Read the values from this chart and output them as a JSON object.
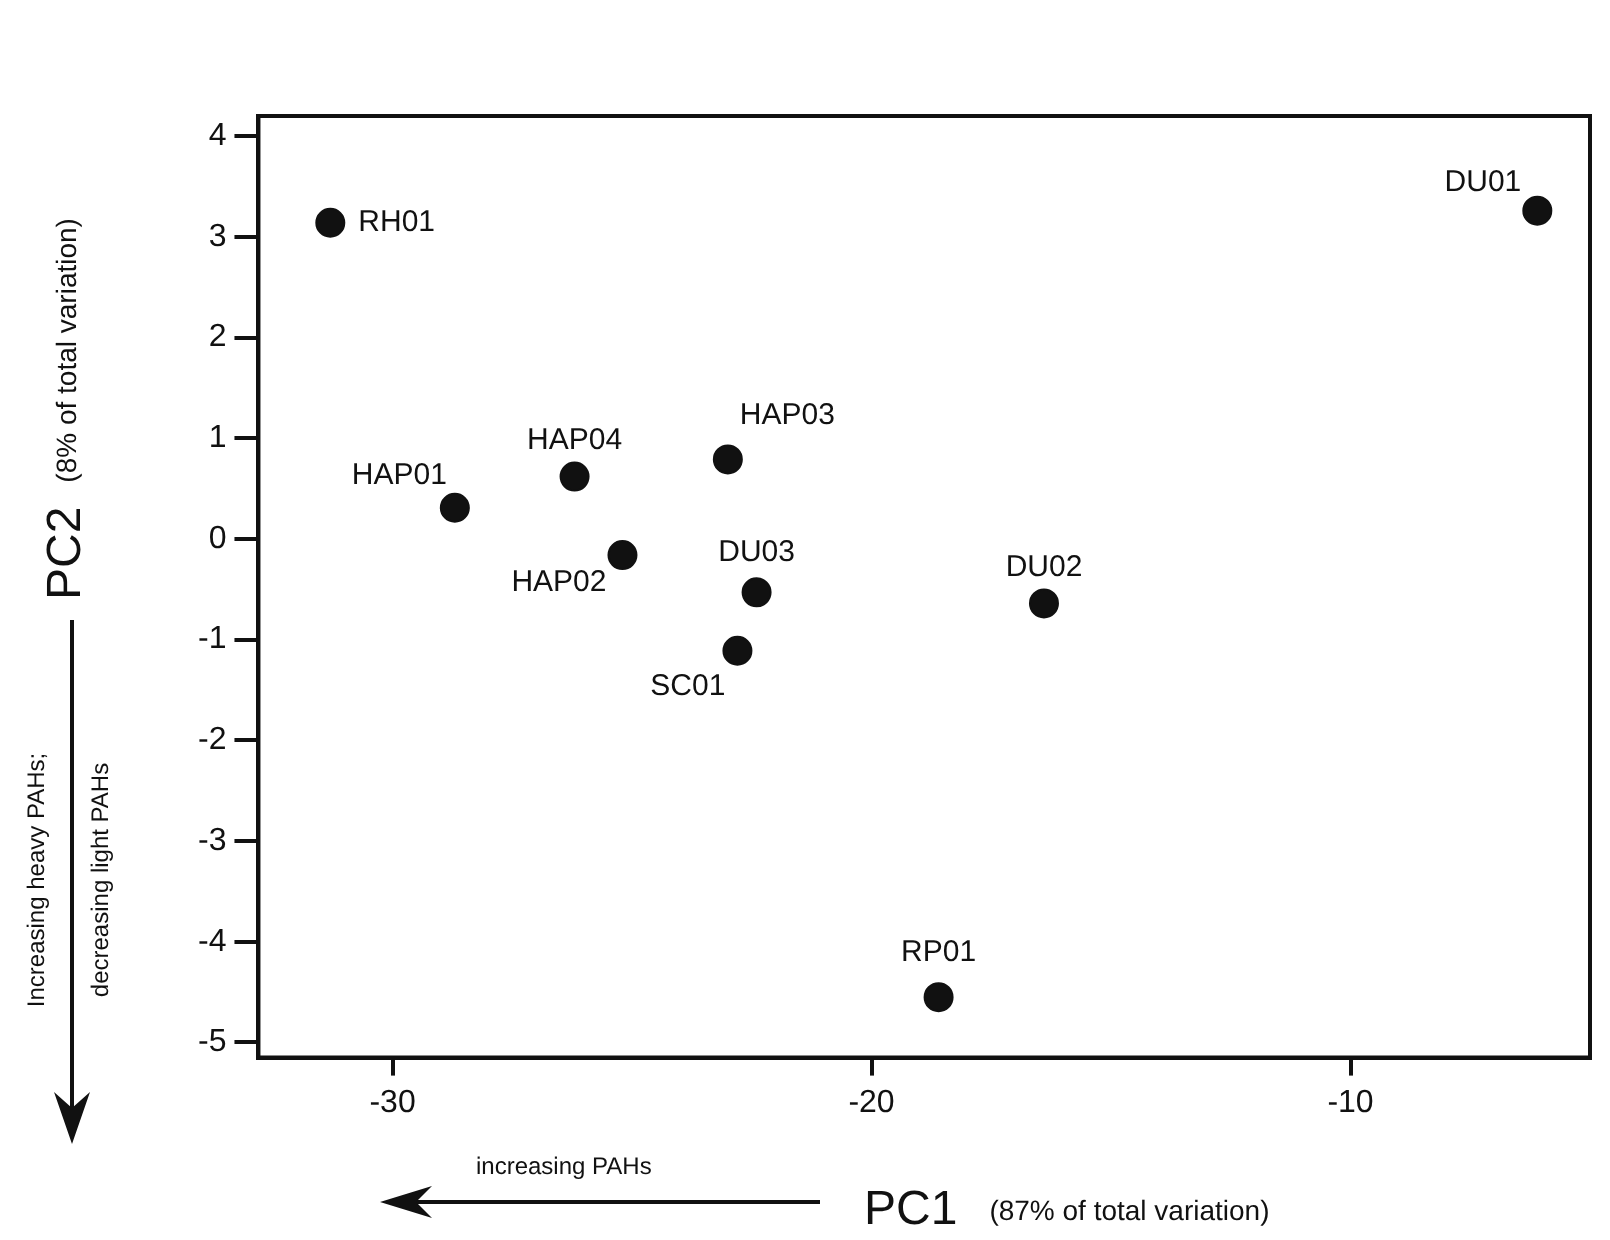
{
  "chart_data": {
    "type": "scatter",
    "xlabel": "PC1 (87% of total variation)",
    "ylabel": "PC2 (8% of total variation)",
    "x": [
      -31.3,
      -6.1,
      -28.7,
      -26.2,
      -23.0,
      -25.2,
      -22.4,
      -16.4,
      -22.8,
      -18.6
    ],
    "values": [
      3.14,
      3.26,
      0.31,
      0.62,
      0.79,
      -0.16,
      -0.53,
      -0.64,
      -1.11,
      -4.55
    ],
    "color": "#111111",
    "marker": "circle",
    "xlim": [
      -32.8,
      -5
    ],
    "xticks": [
      -30,
      -20,
      -10
    ],
    "ylim": [
      -5.15,
      4.2
    ],
    "yticks": [
      -5,
      -4,
      -3,
      -2,
      -1,
      0,
      1,
      2,
      3,
      4
    ],
    "grid": false,
    "legend": false,
    "annotations": [
      "increasing PAHs",
      "Increasing heavy PAHs;",
      "decreasing light PAHs",
      {
        "text": "RH01",
        "x": -31.3,
        "y": 3.14
      },
      {
        "text": "DU01",
        "x": -6.1,
        "y": 3.26
      },
      {
        "text": "HAP01",
        "x": -28.7,
        "y": 0.31
      },
      {
        "text": "HAP04",
        "x": -26.2,
        "y": 0.62
      },
      {
        "text": "HAP03",
        "x": -23.0,
        "y": 0.79
      },
      {
        "text": "HAP02",
        "x": -25.2,
        "y": -0.16
      },
      {
        "text": "DU03",
        "x": -22.4,
        "y": -0.53
      },
      {
        "text": "DU02",
        "x": -16.4,
        "y": -0.64
      },
      {
        "text": "SC01",
        "x": -22.8,
        "y": -1.11
      },
      {
        "text": "RP01",
        "x": -18.6,
        "y": -4.55
      }
    ]
  }
}
